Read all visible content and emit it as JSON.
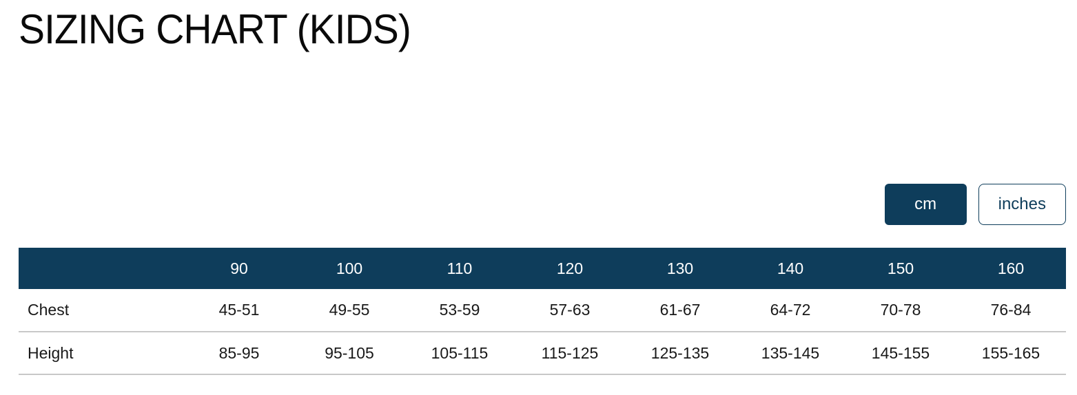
{
  "page": {
    "title": "SIZING CHART (KIDS)"
  },
  "unit_toggle": {
    "cm_label": "cm",
    "inches_label": "inches",
    "selected": "cm"
  },
  "colors": {
    "navy": "#0e3d5b",
    "divider": "#c8c8c8",
    "body_text": "#191919",
    "header_text": "#ffffff"
  },
  "table": {
    "columns": [
      "",
      "90",
      "100",
      "110",
      "120",
      "130",
      "140",
      "150",
      "160"
    ],
    "rows": [
      {
        "label": "Chest",
        "values": [
          "45-51",
          "49-55",
          "53-59",
          "57-63",
          "61-67",
          "64-72",
          "70-78",
          "76-84"
        ]
      },
      {
        "label": "Height",
        "values": [
          "85-95",
          "95-105",
          "105-115",
          "115-125",
          "125-135",
          "135-145",
          "145-155",
          "155-165"
        ]
      }
    ]
  },
  "chart_data": {
    "type": "table",
    "title": "SIZING CHART (KIDS)",
    "unit_selected": "cm",
    "size_columns": [
      "90",
      "100",
      "110",
      "120",
      "130",
      "140",
      "150",
      "160"
    ],
    "rows": [
      {
        "label": "Chest",
        "values": [
          "45-51",
          "49-55",
          "53-59",
          "57-63",
          "61-67",
          "64-72",
          "70-78",
          "76-84"
        ]
      },
      {
        "label": "Height",
        "values": [
          "85-95",
          "95-105",
          "105-115",
          "115-125",
          "125-135",
          "135-145",
          "145-155",
          "155-165"
        ]
      }
    ]
  }
}
